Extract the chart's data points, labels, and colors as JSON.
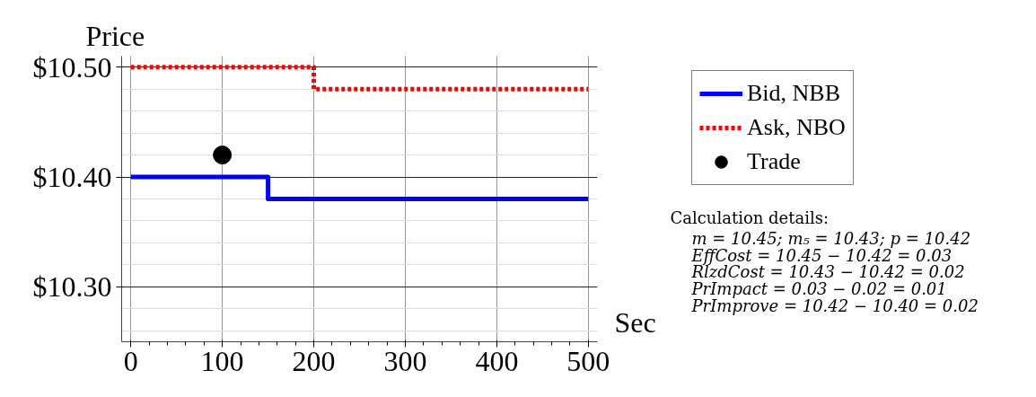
{
  "chart_data": {
    "type": "step",
    "ylabel": "Price",
    "xlabel": "Sec",
    "xlim": [
      -10,
      510
    ],
    "xticks": [
      0,
      100,
      200,
      300,
      400,
      500
    ],
    "ylim": [
      10.25,
      10.51
    ],
    "yticks": [
      {
        "value": 10.3,
        "label": "$10.30"
      },
      {
        "value": 10.4,
        "label": "$10.40"
      },
      {
        "value": 10.5,
        "label": "$10.50"
      }
    ],
    "grid": true,
    "legend": "right",
    "series": [
      {
        "name": "Bid, NBB",
        "color": "#0000ff",
        "line_style": "solid",
        "x": [
          0,
          150,
          500
        ],
        "values": [
          10.4,
          10.38,
          10.38
        ]
      },
      {
        "name": "Ask, NBO",
        "color": "#ff0000",
        "line_style": "dashed",
        "x": [
          0,
          200,
          500
        ],
        "values": [
          10.5,
          10.48,
          10.48
        ]
      },
      {
        "name": "Trade",
        "color": "#000000",
        "type": "scatter",
        "marker": "circle",
        "x": [
          100
        ],
        "values": [
          10.42
        ]
      }
    ],
    "annotations": [
      "Calculation details:",
      "m = 10.45; m₅ = 10.43; p = 10.42",
      "EffCost = 10.45 − 10.42 = 0.03",
      "RlzdCost = 10.43 − 10.42 = 0.02",
      "PrImpact = 0.03 − 0.02 = 0.01",
      "PrImprove = 10.42 − 10.40 = 0.02"
    ]
  }
}
